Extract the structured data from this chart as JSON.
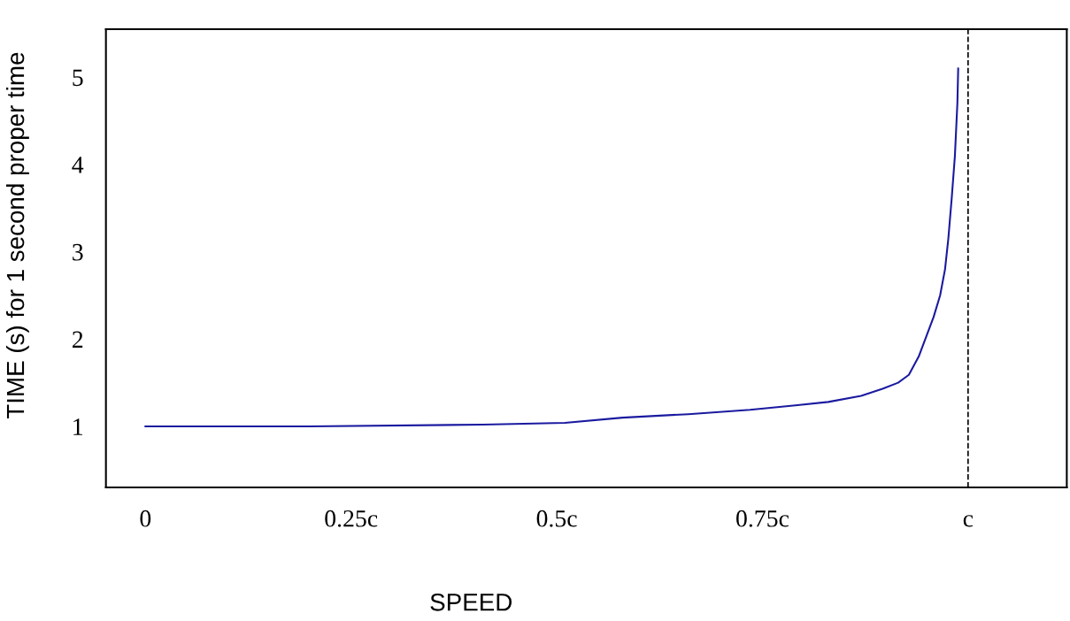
{
  "chart_data": {
    "type": "line",
    "xlabel": "SPEED",
    "ylabel": "TIME (s) for 1 second proper time",
    "x": [
      0,
      0.2,
      0.41,
      0.51,
      0.58,
      0.66,
      0.735,
      0.79,
      0.83,
      0.87,
      0.896,
      0.915,
      0.928,
      0.94,
      0.95,
      0.958,
      0.966,
      0.972,
      0.976,
      0.98,
      0.984,
      0.987,
      0.988
    ],
    "series": [
      {
        "color": "#1a1aa0",
        "values": [
          1,
          1,
          1.02,
          1.04,
          1.1,
          1.14,
          1.19,
          1.24,
          1.28,
          1.35,
          1.43,
          1.5,
          1.59,
          1.8,
          2.05,
          2.25,
          2.5,
          2.8,
          3.15,
          3.6,
          4.1,
          4.7,
          5.1
        ]
      }
    ],
    "xlim": [
      -0.048,
      1.12
    ],
    "ylim": [
      0.3,
      5.55
    ],
    "xticks": [
      {
        "value": 0,
        "label": "0"
      },
      {
        "value": 0.25,
        "label": "0.25c"
      },
      {
        "value": 0.5,
        "label": "0.5c"
      },
      {
        "value": 0.75,
        "label": "0.75c"
      },
      {
        "value": 1,
        "label": "c"
      }
    ],
    "yticks": [
      1,
      2,
      3,
      4,
      5
    ],
    "ref_lines": [
      {
        "axis": "x",
        "value": 1,
        "label": null,
        "color": "#000000",
        "line_style": "dashed"
      }
    ],
    "grid": false,
    "legend": false,
    "marker": "none",
    "line_style": "solid"
  }
}
